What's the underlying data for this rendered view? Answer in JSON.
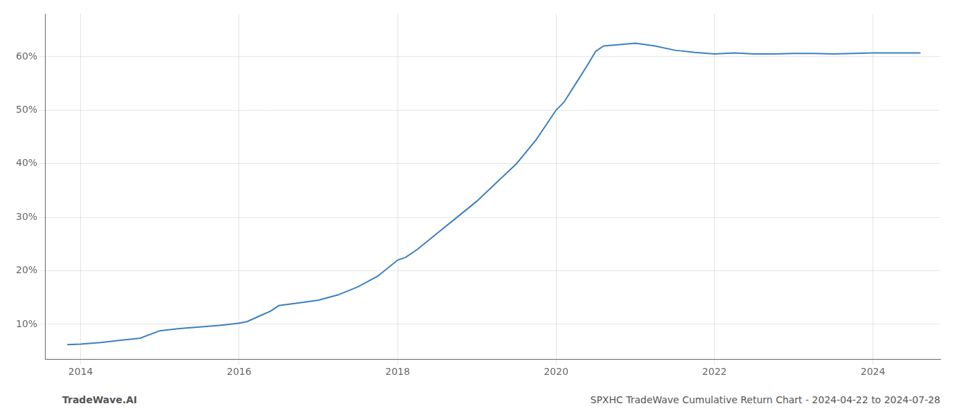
{
  "chart_data": {
    "type": "line",
    "x": [
      2013.83,
      2014.0,
      2014.25,
      2014.5,
      2014.75,
      2015.0,
      2015.25,
      2015.5,
      2015.75,
      2016.0,
      2016.1,
      2016.25,
      2016.4,
      2016.5,
      2016.75,
      2017.0,
      2017.25,
      2017.5,
      2017.75,
      2018.0,
      2018.1,
      2018.25,
      2018.5,
      2018.75,
      2019.0,
      2019.25,
      2019.5,
      2019.75,
      2020.0,
      2020.1,
      2020.25,
      2020.4,
      2020.5,
      2020.6,
      2020.75,
      2021.0,
      2021.1,
      2021.25,
      2021.5,
      2021.75,
      2022.0,
      2022.25,
      2022.5,
      2022.75,
      2023.0,
      2023.25,
      2023.5,
      2023.75,
      2024.0,
      2024.25,
      2024.5,
      2024.6
    ],
    "values": [
      6.2,
      6.3,
      6.6,
      7.0,
      7.4,
      8.8,
      9.2,
      9.5,
      9.8,
      10.2,
      10.5,
      11.5,
      12.5,
      13.5,
      14.0,
      14.5,
      15.5,
      17.0,
      19.0,
      22.0,
      22.5,
      24.0,
      27.0,
      30.0,
      33.0,
      36.5,
      40.0,
      44.5,
      50.0,
      51.5,
      55.0,
      58.5,
      61.0,
      62.0,
      62.2,
      62.5,
      62.3,
      62.0,
      61.2,
      60.8,
      60.5,
      60.7,
      60.5,
      60.5,
      60.6,
      60.6,
      60.5,
      60.6,
      60.7,
      60.7,
      60.7,
      60.7
    ],
    "color": "#3a7fc1",
    "xlim": [
      2013.55,
      2024.85
    ],
    "xticks": [
      2014,
      2016,
      2018,
      2020,
      2022,
      2024
    ],
    "ylim": [
      3.5,
      68
    ],
    "yticks": [
      {
        "value": 10,
        "label": "10%"
      },
      {
        "value": 20,
        "label": "20%"
      },
      {
        "value": 30,
        "label": "30%"
      },
      {
        "value": 40,
        "label": "40%"
      },
      {
        "value": 50,
        "label": "50%"
      },
      {
        "value": 60,
        "label": "60%"
      }
    ],
    "grid": true,
    "annotations": [
      "TradeWave.AI",
      "SPXHC TradeWave Cumulative Return Chart - 2024-04-22 to 2024-07-28"
    ]
  }
}
